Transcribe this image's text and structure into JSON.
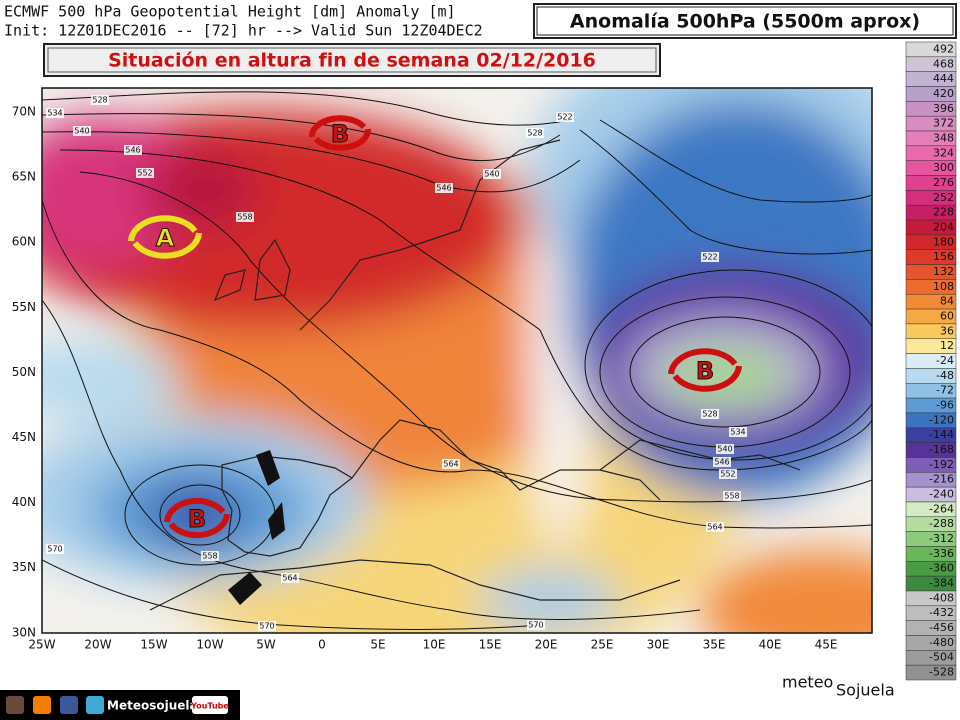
{
  "header": {
    "line1": "ECMWF 500 hPa Geopotential Height [dm] Anomaly [m]",
    "line2": "Init: 12Z01DEC2016 -- [72] hr --> Valid Sun 12Z04DEC2",
    "badge": "Anomalía 500hPa (5500m aprox)"
  },
  "banner": "Situación en altura fin de semana 02/12/2016",
  "map": {
    "lat_labels": [
      "70N",
      "65N",
      "60N",
      "55N",
      "50N",
      "45N",
      "40N",
      "35N",
      "30N"
    ],
    "lon_labels": [
      "25W",
      "20W",
      "15W",
      "10W",
      "5W",
      "0",
      "5E",
      "10E",
      "15E",
      "20E",
      "25E",
      "30E",
      "35E",
      "40E",
      "45E"
    ],
    "contour_labels": [
      "528",
      "534",
      "540",
      "546",
      "552",
      "558",
      "546",
      "540",
      "528",
      "522",
      "522",
      "528",
      "534",
      "540",
      "546",
      "552",
      "558",
      "564",
      "564",
      "558",
      "570",
      "564",
      "570",
      "570"
    ],
    "centers": [
      "A",
      "B",
      "B",
      "B"
    ]
  },
  "legend": {
    "values": [
      492,
      468,
      444,
      420,
      396,
      372,
      348,
      324,
      300,
      276,
      252,
      228,
      204,
      180,
      156,
      132,
      108,
      84,
      60,
      36,
      12,
      -24,
      -48,
      -72,
      -96,
      -120,
      -144,
      -168,
      -192,
      -216,
      -240,
      -264,
      -288,
      -312,
      -336,
      -360,
      -384,
      -408,
      -432,
      -456,
      -480,
      -504,
      -528
    ],
    "colors": [
      "#d9d9d9",
      "#cdc4d6",
      "#c3b3d3",
      "#b9a0cc",
      "#c992c4",
      "#d98cc0",
      "#e47fb8",
      "#ea6aad",
      "#e8559f",
      "#e0408f",
      "#d52e7c",
      "#c81e66",
      "#c51a3a",
      "#d1262a",
      "#dc3a2a",
      "#e5542c",
      "#ec6b2e",
      "#f28a36",
      "#f6a845",
      "#f9c95e",
      "#fbe89a",
      "#d9ecf7",
      "#b8daf0",
      "#8fc2e6",
      "#5d9bd4",
      "#3c74c0",
      "#3b3f9e",
      "#57329a",
      "#7d5db5",
      "#a592cc",
      "#c9bde2",
      "#d2ebc2",
      "#b5dca0",
      "#8fca7c",
      "#6ab65a",
      "#4a9c44",
      "#3b8a3f",
      "#c8c8c8",
      "#bdbdbd",
      "#b2b2b2",
      "#a7a7a7",
      "#9c9c9c",
      "#919191"
    ]
  },
  "footer": {
    "social": "Meteosojuela",
    "youtube": "YouTube",
    "logo_top": "meteo",
    "logo_bottom": "Sojuela"
  }
}
